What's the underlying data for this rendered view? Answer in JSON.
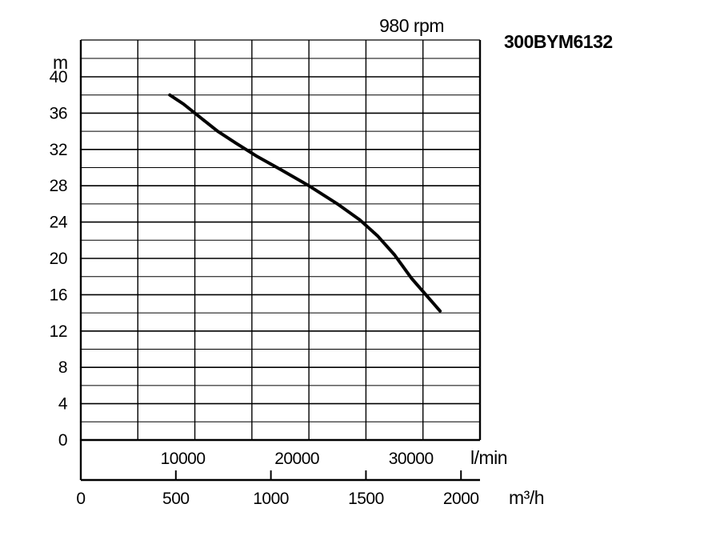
{
  "chart_data": {
    "type": "line",
    "title": "300BYM6132",
    "subtitle": "980 rpm",
    "ylabel": "m",
    "x_unit_flow": "l/min",
    "x_unit_volume": "m³/h",
    "xlim": [
      0,
      35000
    ],
    "ylim": [
      0,
      40
    ],
    "y_ticks": [
      "0",
      "4",
      "8",
      "12",
      "16",
      "20",
      "24",
      "28",
      "32",
      "36",
      "40"
    ],
    "x_ticks_flow": [
      "10000",
      "20000",
      "30000"
    ],
    "x_ticks_volume": [
      "0",
      "500",
      "1000",
      "1500",
      "2000"
    ],
    "grid": true,
    "series": [
      {
        "x": [
          7800,
          9000,
          10500,
          12000,
          13600,
          15500,
          17500,
          20000,
          22500,
          24500,
          26000,
          27500,
          29000,
          31500
        ],
        "y": [
          38.0,
          37.0,
          35.5,
          34.0,
          32.7,
          31.2,
          29.8,
          28.0,
          26.0,
          24.2,
          22.5,
          20.4,
          17.8,
          14.2
        ]
      }
    ]
  }
}
